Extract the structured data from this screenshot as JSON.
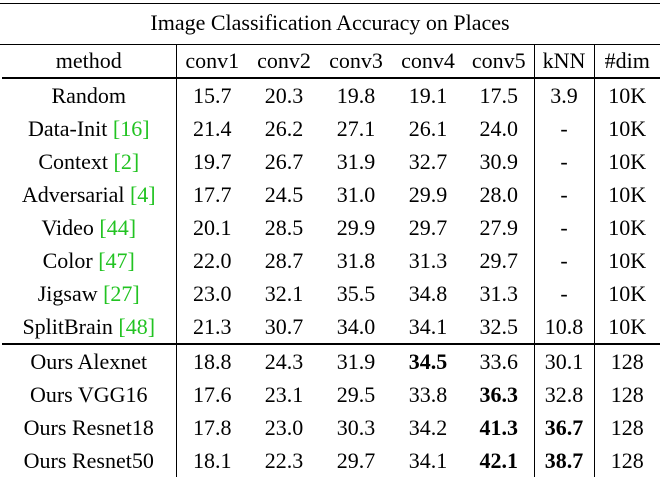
{
  "table": {
    "caption": "Image Classification Accuracy on Places",
    "columns": [
      "method",
      "conv1",
      "conv2",
      "conv3",
      "conv4",
      "conv5",
      "kNN",
      "#dim"
    ],
    "rows": [
      {
        "method": "Random",
        "cite": "",
        "values": [
          "15.7",
          "20.3",
          "19.8",
          "19.1",
          "17.5",
          "3.9",
          "10K"
        ],
        "bold": []
      },
      {
        "method": "Data-Init",
        "cite": "[16]",
        "values": [
          "21.4",
          "26.2",
          "27.1",
          "26.1",
          "24.0",
          "-",
          "10K"
        ],
        "bold": []
      },
      {
        "method": "Context",
        "cite": "[2]",
        "values": [
          "19.7",
          "26.7",
          "31.9",
          "32.7",
          "30.9",
          "-",
          "10K"
        ],
        "bold": []
      },
      {
        "method": "Adversarial",
        "cite": "[4]",
        "values": [
          "17.7",
          "24.5",
          "31.0",
          "29.9",
          "28.0",
          "-",
          "10K"
        ],
        "bold": []
      },
      {
        "method": "Video",
        "cite": "[44]",
        "values": [
          "20.1",
          "28.5",
          "29.9",
          "29.7",
          "27.9",
          "-",
          "10K"
        ],
        "bold": []
      },
      {
        "method": "Color",
        "cite": "[47]",
        "values": [
          "22.0",
          "28.7",
          "31.8",
          "31.3",
          "29.7",
          "-",
          "10K"
        ],
        "bold": []
      },
      {
        "method": "Jigsaw",
        "cite": "[27]",
        "values": [
          "23.0",
          "32.1",
          "35.5",
          "34.8",
          "31.3",
          "-",
          "10K"
        ],
        "bold": []
      },
      {
        "method": "SplitBrain",
        "cite": "[48]",
        "values": [
          "21.3",
          "30.7",
          "34.0",
          "34.1",
          "32.5",
          "10.8",
          "10K"
        ],
        "bold": []
      },
      {
        "method": "Ours Alexnet",
        "cite": "",
        "values": [
          "18.8",
          "24.3",
          "31.9",
          "34.5",
          "33.6",
          "30.1",
          "128"
        ],
        "bold": [
          3
        ],
        "group_start": true
      },
      {
        "method": "Ours VGG16",
        "cite": "",
        "values": [
          "17.6",
          "23.1",
          "29.5",
          "33.8",
          "36.3",
          "32.8",
          "128"
        ],
        "bold": [
          4
        ]
      },
      {
        "method": "Ours Resnet18",
        "cite": "",
        "values": [
          "17.8",
          "23.0",
          "30.3",
          "34.2",
          "41.3",
          "36.7",
          "128"
        ],
        "bold": [
          4,
          5
        ]
      },
      {
        "method": "Ours Resnet50",
        "cite": "",
        "values": [
          "18.1",
          "22.3",
          "29.7",
          "34.1",
          "42.1",
          "38.7",
          "128"
        ],
        "bold": [
          4,
          5
        ]
      }
    ]
  },
  "colors": {
    "citation": "#22c322",
    "text": "#000000"
  }
}
